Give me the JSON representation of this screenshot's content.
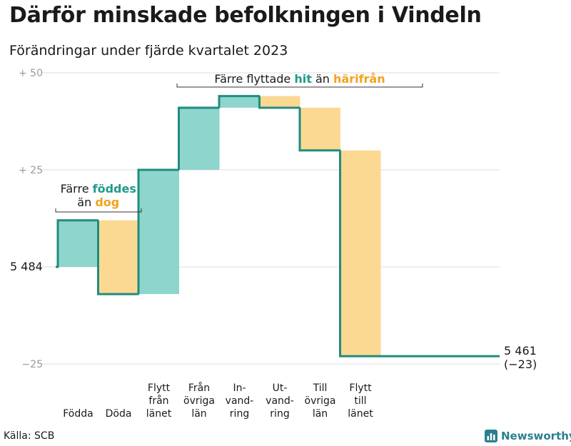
{
  "title": "Därför minskade befolkningen i Vindeln",
  "subtitle": "Förändringar under fjärde kvartalet 2023",
  "source": "Källa: SCB",
  "brand": "Newsworthy",
  "colors": {
    "increase": "#8ed5cc",
    "decrease": "#fcd992",
    "line": "#1f8c80",
    "accent_green": "#1f9a8a",
    "accent_orange": "#f3a21c",
    "grid": "#dcdcdc"
  },
  "chart_data": {
    "type": "bar",
    "start_value": 5484,
    "start_label": "5 484",
    "end_value": 5461,
    "end_label": "5 461",
    "end_change_label": "(−23)",
    "ylim": [
      -25,
      50
    ],
    "yticks": [
      {
        "value": 50,
        "label": "+  50"
      },
      {
        "value": 25,
        "label": "+  25"
      },
      {
        "value": 0,
        "label": ""
      },
      {
        "value": -25,
        "label": "−25"
      }
    ],
    "steps": [
      {
        "name": "Födda",
        "label_lines": [
          "Födda"
        ],
        "change": 12
      },
      {
        "name": "Döda",
        "label_lines": [
          "Döda"
        ],
        "change": -19
      },
      {
        "name": "Flytt från länet",
        "label_lines": [
          "Flytt",
          "från",
          "länet"
        ],
        "change": 32
      },
      {
        "name": "Från övriga län",
        "label_lines": [
          "Från",
          "övriga",
          "län"
        ],
        "change": 16
      },
      {
        "name": "Invandring",
        "label_lines": [
          "In-",
          "vand-",
          "ring"
        ],
        "change": 3
      },
      {
        "name": "Utvandring",
        "label_lines": [
          "Ut-",
          "vand-",
          "ring"
        ],
        "change": -3
      },
      {
        "name": "Till övriga län",
        "label_lines": [
          "Till",
          "övriga",
          "län"
        ],
        "change": -11
      },
      {
        "name": "Flytt till länet",
        "label_lines": [
          "Flytt",
          "till",
          "länet"
        ],
        "change": -53
      }
    ],
    "annotations": [
      {
        "parts": [
          {
            "text": "Färre ",
            "color": ""
          },
          {
            "text": "föddes",
            "color": "accent_green"
          }
        ],
        "line2": [
          {
            "text": "än ",
            "color": ""
          },
          {
            "text": "dog",
            "color": "accent_orange"
          }
        ]
      },
      {
        "parts": [
          {
            "text": "Färre flyttade ",
            "color": ""
          },
          {
            "text": "hit",
            "color": "accent_green"
          },
          {
            "text": "  än ",
            "color": ""
          },
          {
            "text": "härifrån",
            "color": "accent_orange"
          }
        ]
      }
    ]
  }
}
